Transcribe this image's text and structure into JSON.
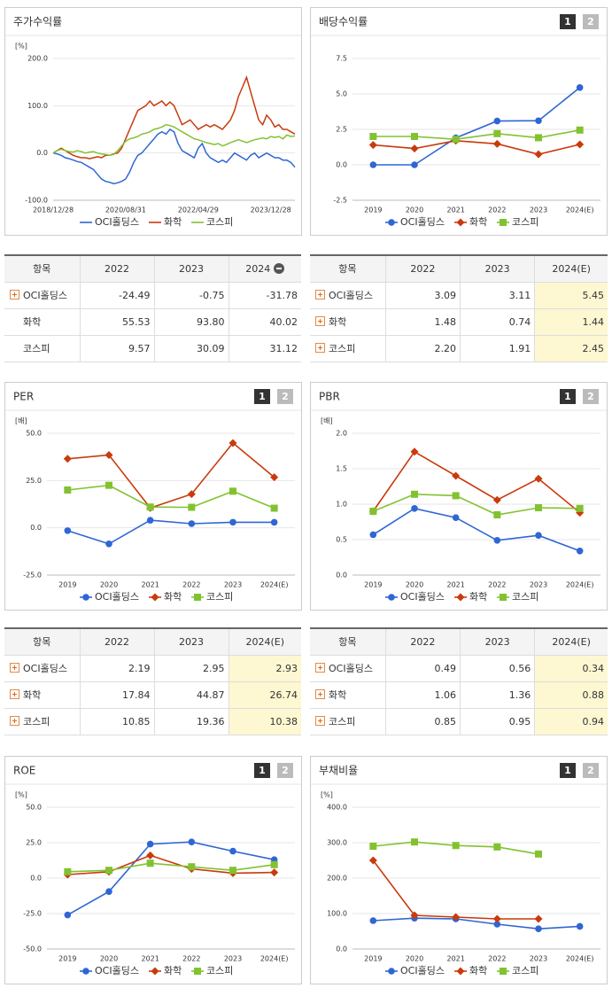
{
  "chart_data": [
    {
      "type": "line",
      "title": "주가수익률",
      "unit": "[%]",
      "categories": [
        "2018/12/28",
        null,
        null,
        null,
        null,
        null,
        null,
        null,
        null,
        null,
        null,
        null,
        null,
        null,
        null,
        null,
        null,
        null,
        "2020/08/31",
        null,
        null,
        null,
        null,
        null,
        null,
        null,
        null,
        null,
        null,
        null,
        null,
        null,
        null,
        null,
        null,
        null,
        "2022/04/29",
        null,
        null,
        null,
        null,
        null,
        null,
        null,
        null,
        null,
        null,
        null,
        null,
        null,
        null,
        null,
        null,
        null,
        "2023/12/28",
        null,
        null,
        null,
        null,
        null,
        null
      ],
      "series": [
        {
          "name": "OCI홀딩스",
          "color": "#2f66d4",
          "values": [
            0,
            -2,
            -5,
            -10,
            -12,
            -15,
            -18,
            -20,
            -25,
            -30,
            -35,
            -45,
            -55,
            -60,
            -62,
            -65,
            -63,
            -60,
            -55,
            -40,
            -20,
            -5,
            0,
            10,
            20,
            30,
            40,
            45,
            40,
            50,
            45,
            20,
            5,
            0,
            -5,
            -10,
            10,
            20,
            0,
            -10,
            -15,
            -20,
            -15,
            -20,
            -10,
            0,
            -5,
            -10,
            -15,
            -5,
            0,
            -10,
            -5,
            0,
            -5,
            -10,
            -10,
            -15,
            -15,
            -20,
            -30
          ]
        },
        {
          "name": "화학",
          "color": "#c93a0c",
          "values": [
            0,
            5,
            10,
            5,
            0,
            -5,
            -8,
            -10,
            -10,
            -12,
            -10,
            -8,
            -10,
            -5,
            -5,
            -2,
            0,
            10,
            30,
            50,
            70,
            90,
            95,
            100,
            110,
            100,
            105,
            110,
            100,
            108,
            100,
            80,
            60,
            65,
            70,
            60,
            50,
            55,
            60,
            55,
            60,
            55,
            50,
            60,
            70,
            90,
            120,
            140,
            160,
            130,
            100,
            70,
            60,
            80,
            70,
            55,
            60,
            50,
            50,
            45,
            40
          ]
        },
        {
          "name": "코스피",
          "color": "#82c230",
          "values": [
            0,
            5,
            8,
            5,
            3,
            2,
            5,
            3,
            0,
            2,
            3,
            0,
            -2,
            -3,
            -5,
            -3,
            5,
            15,
            25,
            30,
            32,
            35,
            40,
            42,
            45,
            50,
            52,
            55,
            60,
            58,
            55,
            50,
            45,
            40,
            35,
            30,
            28,
            25,
            22,
            20,
            18,
            20,
            15,
            18,
            22,
            25,
            28,
            25,
            22,
            25,
            28,
            30,
            32,
            30,
            35,
            33,
            35,
            30,
            38,
            35,
            36
          ]
        }
      ],
      "ylim": [
        -100,
        200
      ],
      "yticks": [
        {
          "value": -100,
          "label": "-100.0"
        },
        {
          "value": 0,
          "label": "0.0"
        },
        {
          "value": 100,
          "label": "100.0"
        },
        {
          "value": 200,
          "label": "200.0"
        }
      ],
      "grid": true
    },
    {
      "type": "line",
      "title": "배당수익률",
      "buttons": [
        "1",
        "2"
      ],
      "markers": true,
      "categories": [
        "2019",
        "2020",
        "2021",
        "2022",
        "2023",
        "2024(E)"
      ],
      "series": [
        {
          "name": "OCI홀딩스",
          "color": "#2f66d4",
          "values": [
            0,
            0,
            1.9,
            3.09,
            3.11,
            5.45
          ]
        },
        {
          "name": "화학",
          "color": "#c93a0c",
          "values": [
            1.4,
            1.15,
            1.7,
            1.48,
            0.74,
            1.44
          ]
        },
        {
          "name": "코스피",
          "color": "#82c230",
          "values": [
            2.0,
            2.0,
            1.8,
            2.2,
            1.91,
            2.45
          ]
        }
      ],
      "ylim": [
        -2.5,
        7.5
      ],
      "yticks": [
        -2.5,
        {
          "value": 0,
          "label": "0.0"
        },
        2.5,
        {
          "value": 5,
          "label": "5.0"
        },
        7.5
      ],
      "grid": true
    },
    {
      "type": "line",
      "title": "PER",
      "buttons": [
        "1",
        "2"
      ],
      "markers": true,
      "unit": "[배]",
      "categories": [
        "2019",
        "2020",
        "2021",
        "2022",
        "2023",
        "2024(E)"
      ],
      "series": [
        {
          "name": "OCI홀딩스",
          "color": "#2f66d4",
          "values": [
            -1.5,
            -8.5,
            4,
            2.19,
            2.95,
            2.93
          ]
        },
        {
          "name": "화학",
          "color": "#c93a0c",
          "values": [
            36.5,
            38.5,
            10.5,
            17.84,
            44.87,
            26.74
          ]
        },
        {
          "name": "코스피",
          "color": "#82c230",
          "values": [
            20,
            22.5,
            11,
            10.85,
            19.36,
            10.38
          ]
        }
      ],
      "ylim": [
        -25,
        50
      ],
      "yticks": [
        {
          "value": -25,
          "label": "-25.0"
        },
        {
          "value": 0,
          "label": "0.0"
        },
        {
          "value": 25,
          "label": "25.0"
        },
        {
          "value": 50,
          "label": "50.0"
        }
      ],
      "grid": true
    },
    {
      "type": "line",
      "title": "PBR",
      "buttons": [
        "1",
        "2"
      ],
      "markers": true,
      "unit": "[배]",
      "categories": [
        "2019",
        "2020",
        "2021",
        "2022",
        "2023",
        "2024(E)"
      ],
      "series": [
        {
          "name": "OCI홀딩스",
          "color": "#2f66d4",
          "values": [
            0.57,
            0.94,
            0.81,
            0.49,
            0.56,
            0.34
          ]
        },
        {
          "name": "화학",
          "color": "#c93a0c",
          "values": [
            0.9,
            1.74,
            1.4,
            1.06,
            1.36,
            0.88
          ]
        },
        {
          "name": "코스피",
          "color": "#82c230",
          "values": [
            0.9,
            1.14,
            1.12,
            0.85,
            0.95,
            0.94
          ]
        }
      ],
      "ylim": [
        0,
        2
      ],
      "yticks": [
        {
          "value": 0,
          "label": "0.0"
        },
        0.5,
        {
          "value": 1,
          "label": "1.0"
        },
        1.5,
        {
          "value": 2,
          "label": "2.0"
        }
      ],
      "grid": true
    },
    {
      "type": "line",
      "title": "ROE",
      "buttons": [
        "1",
        "2"
      ],
      "markers": true,
      "unit": "[%]",
      "categories": [
        "2019",
        "2020",
        "2021",
        "2022",
        "2023",
        "2024(E)"
      ],
      "series": [
        {
          "name": "OCI홀딩스",
          "color": "#2f66d4",
          "values": [
            -26,
            -9.5,
            24,
            25.5,
            19,
            13
          ]
        },
        {
          "name": "화학",
          "color": "#c93a0c",
          "values": [
            2.5,
            4.5,
            16,
            6.5,
            3.5,
            4
          ]
        },
        {
          "name": "코스피",
          "color": "#82c230",
          "values": [
            4.5,
            5.5,
            10.5,
            8,
            5.5,
            9.5
          ]
        }
      ],
      "ylim": [
        -50,
        50
      ],
      "yticks": [
        {
          "value": -50,
          "label": "-50.0"
        },
        {
          "value": -25,
          "label": "-25.0"
        },
        {
          "value": 0,
          "label": "0.0"
        },
        {
          "value": 25,
          "label": "25.0"
        },
        {
          "value": 50,
          "label": "50.0"
        }
      ],
      "grid": true
    },
    {
      "type": "line",
      "title": "부채비율",
      "buttons": [
        "1",
        "2"
      ],
      "markers": true,
      "unit": "[%]",
      "categories": [
        "2019",
        "2020",
        "2021",
        "2022",
        "2023",
        "2024(E)"
      ],
      "series": [
        {
          "name": "OCI홀딩스",
          "color": "#2f66d4",
          "values": [
            80,
            87,
            85,
            70,
            57,
            64
          ]
        },
        {
          "name": "화학",
          "color": "#c93a0c",
          "values": [
            250,
            95,
            90,
            85,
            85,
            null
          ]
        },
        {
          "name": "코스피",
          "color": "#82c230",
          "values": [
            290,
            302,
            292,
            288,
            268,
            null
          ]
        }
      ],
      "ylim": [
        0,
        400
      ],
      "yticks": [
        {
          "value": 0,
          "label": "0.0"
        },
        {
          "value": 100,
          "label": "100.0"
        },
        {
          "value": 200,
          "label": "200.0"
        },
        {
          "value": 300,
          "label": "300.0"
        },
        {
          "value": 400,
          "label": "400.0"
        }
      ],
      "grid": true
    }
  ],
  "tables": [
    {
      "header": [
        "항목",
        "2022",
        "2023",
        "2024"
      ],
      "collapse": true,
      "highlight_last": false,
      "rows": [
        {
          "icon": true,
          "cells": [
            "OCI홀딩스",
            "-24.49",
            "-0.75",
            "-31.78"
          ]
        },
        {
          "icon": false,
          "cells": [
            "화학",
            "55.53",
            "93.80",
            "40.02"
          ]
        },
        {
          "icon": false,
          "cells": [
            "코스피",
            "9.57",
            "30.09",
            "31.12"
          ]
        }
      ]
    },
    {
      "header": [
        "항목",
        "2022",
        "2023",
        "2024(E)"
      ],
      "highlight_last": true,
      "rows": [
        {
          "icon": true,
          "cells": [
            "OCI홀딩스",
            "3.09",
            "3.11",
            "5.45"
          ]
        },
        {
          "icon": true,
          "cells": [
            "화학",
            "1.48",
            "0.74",
            "1.44"
          ]
        },
        {
          "icon": true,
          "cells": [
            "코스피",
            "2.20",
            "1.91",
            "2.45"
          ]
        }
      ]
    },
    {
      "header": [
        "항목",
        "2022",
        "2023",
        "2024(E)"
      ],
      "highlight_last": true,
      "rows": [
        {
          "icon": true,
          "cells": [
            "OCI홀딩스",
            "2.19",
            "2.95",
            "2.93"
          ]
        },
        {
          "icon": true,
          "cells": [
            "화학",
            "17.84",
            "44.87",
            "26.74"
          ]
        },
        {
          "icon": true,
          "cells": [
            "코스피",
            "10.85",
            "19.36",
            "10.38"
          ]
        }
      ]
    },
    {
      "header": [
        "항목",
        "2022",
        "2023",
        "2024(E)"
      ],
      "highlight_last": true,
      "rows": [
        {
          "icon": true,
          "cells": [
            "OCI홀딩스",
            "0.49",
            "0.56",
            "0.34"
          ]
        },
        {
          "icon": true,
          "cells": [
            "화학",
            "1.06",
            "1.36",
            "0.88"
          ]
        },
        {
          "icon": true,
          "cells": [
            "코스피",
            "0.85",
            "0.95",
            "0.94"
          ]
        }
      ]
    }
  ]
}
